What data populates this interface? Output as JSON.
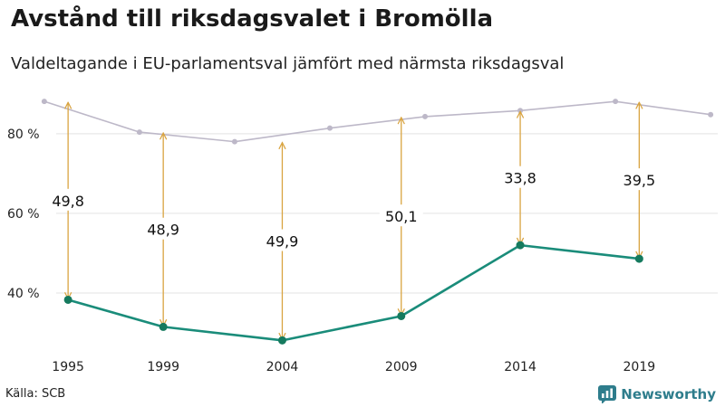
{
  "header": {
    "title": "Avstånd till riksdagsvalet i Bromölla",
    "subtitle": "Valdeltagande i EU-parlamentsval jämfört med närmsta riksdagsval"
  },
  "footer": {
    "source": "Källa: SCB",
    "brand": "Newsworthy"
  },
  "colors": {
    "eu_line": "#1a8c7a",
    "eu_point": "#157a5e",
    "riksdag_line": "#bdb8c8",
    "arrow": "#d9a441",
    "grid": "#e3e3e3"
  },
  "chart_data": {
    "type": "line",
    "title": "Avstånd till riksdagsvalet i Bromölla",
    "subtitle": "Valdeltagande i EU-parlamentsval jämfört med närmsta riksdagsval",
    "xlabel": "",
    "ylabel": "",
    "x_ticks": [
      1995,
      1999,
      2004,
      2009,
      2014,
      2019
    ],
    "xlim": [
      1994.5,
      2022.3
    ],
    "ylim": [
      25,
      92
    ],
    "y_ticks": [
      {
        "value": 40,
        "label": "40 %"
      },
      {
        "value": 60,
        "label": "60 %"
      },
      {
        "value": 80,
        "label": "80 %"
      }
    ],
    "grid": "horizontal",
    "legend": "none",
    "riksdag_series": {
      "x": [
        1994,
        1998,
        2002,
        2006,
        2010,
        2014,
        2018,
        2022
      ],
      "values": [
        88.1,
        80.4,
        78.0,
        81.4,
        84.3,
        85.8,
        88.1,
        84.8
      ]
    },
    "eu_series": {
      "x": [
        1995,
        1999,
        2004,
        2009,
        2014,
        2019
      ],
      "values": [
        38.3,
        31.5,
        28.1,
        34.2,
        52.0,
        48.6
      ]
    },
    "gaps": [
      {
        "x": 1995,
        "from": 38.3,
        "to": 88.1,
        "label": "49,8"
      },
      {
        "x": 1999,
        "from": 31.5,
        "to": 80.4,
        "label": "48,9"
      },
      {
        "x": 2004,
        "from": 28.1,
        "to": 78.0,
        "label": "49,9"
      },
      {
        "x": 2009,
        "from": 34.2,
        "to": 84.3,
        "label": "50,1"
      },
      {
        "x": 2014,
        "from": 52.0,
        "to": 85.8,
        "label": "33,8"
      },
      {
        "x": 2019,
        "from": 48.6,
        "to": 88.1,
        "label": "39,5"
      }
    ]
  }
}
